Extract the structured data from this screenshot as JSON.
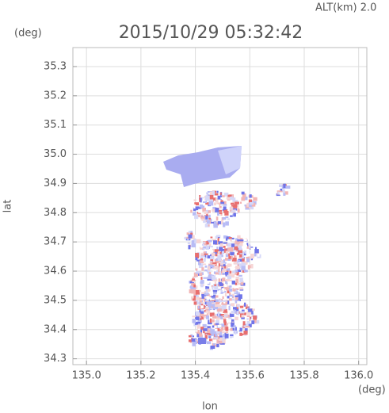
{
  "chart_data": {
    "type": "map",
    "title": "2015/10/29 05:32:42",
    "altitude_label": "ALT(km) 2.0",
    "x_label": "lon",
    "x_unit": "(deg)",
    "y_label": "lat",
    "y_unit": "(deg)",
    "xlim": [
      134.95,
      136.03
    ],
    "ylim": [
      34.28,
      35.365
    ],
    "xticks": [
      {
        "value": 135,
        "label": "135.0"
      },
      135.2,
      135.4,
      135.6,
      135.8,
      {
        "value": 136,
        "label": "136.0"
      }
    ],
    "yticks": [
      34.3,
      34.4,
      34.5,
      34.6,
      34.7,
      34.8,
      34.9,
      {
        "value": 35,
        "label": "35.0"
      },
      35.1,
      35.2,
      35.3
    ],
    "grid": true
  }
}
